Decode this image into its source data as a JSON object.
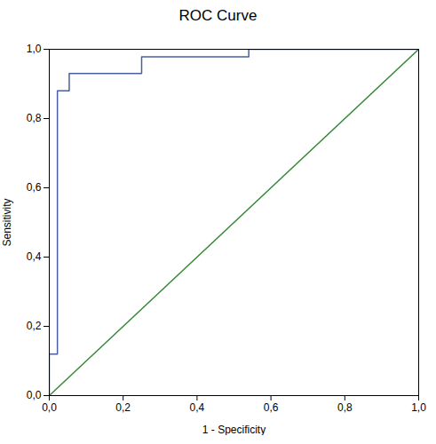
{
  "chart_data": {
    "type": "line",
    "title": "ROC Curve",
    "xlabel": "1 - Specificity",
    "ylabel": "Sensitivity",
    "xlim": [
      0.0,
      1.0
    ],
    "ylim": [
      0.0,
      1.0
    ],
    "xticks": [
      {
        "value": 0.0,
        "label": "0,0"
      },
      {
        "value": 0.2,
        "label": "0,2"
      },
      {
        "value": 0.4,
        "label": "0,4"
      },
      {
        "value": 0.6,
        "label": "0,6"
      },
      {
        "value": 0.8,
        "label": "0,8"
      },
      {
        "value": 1.0,
        "label": "1,0"
      }
    ],
    "yticks": [
      {
        "value": 0.0,
        "label": "0,0"
      },
      {
        "value": 0.2,
        "label": "0,2"
      },
      {
        "value": 0.4,
        "label": "0,4"
      },
      {
        "value": 0.6,
        "label": "0,6"
      },
      {
        "value": 0.8,
        "label": "0,8"
      },
      {
        "value": 1.0,
        "label": "1,0"
      }
    ],
    "grid": false,
    "series": [
      {
        "color": "#3a8a3a",
        "x": [
          0.0,
          1.0
        ],
        "values": [
          0.0,
          1.0
        ]
      },
      {
        "color": "#4a5fa0",
        "x": [
          0.0,
          0.0,
          0.022,
          0.022,
          0.054,
          0.054,
          0.25,
          0.25,
          0.54,
          0.54,
          0.96,
          0.96,
          1.0
        ],
        "values": [
          0.0,
          0.12,
          0.12,
          0.88,
          0.88,
          0.93,
          0.93,
          0.978,
          0.978,
          1.0,
          1.0,
          1.0,
          1.0
        ]
      }
    ]
  }
}
